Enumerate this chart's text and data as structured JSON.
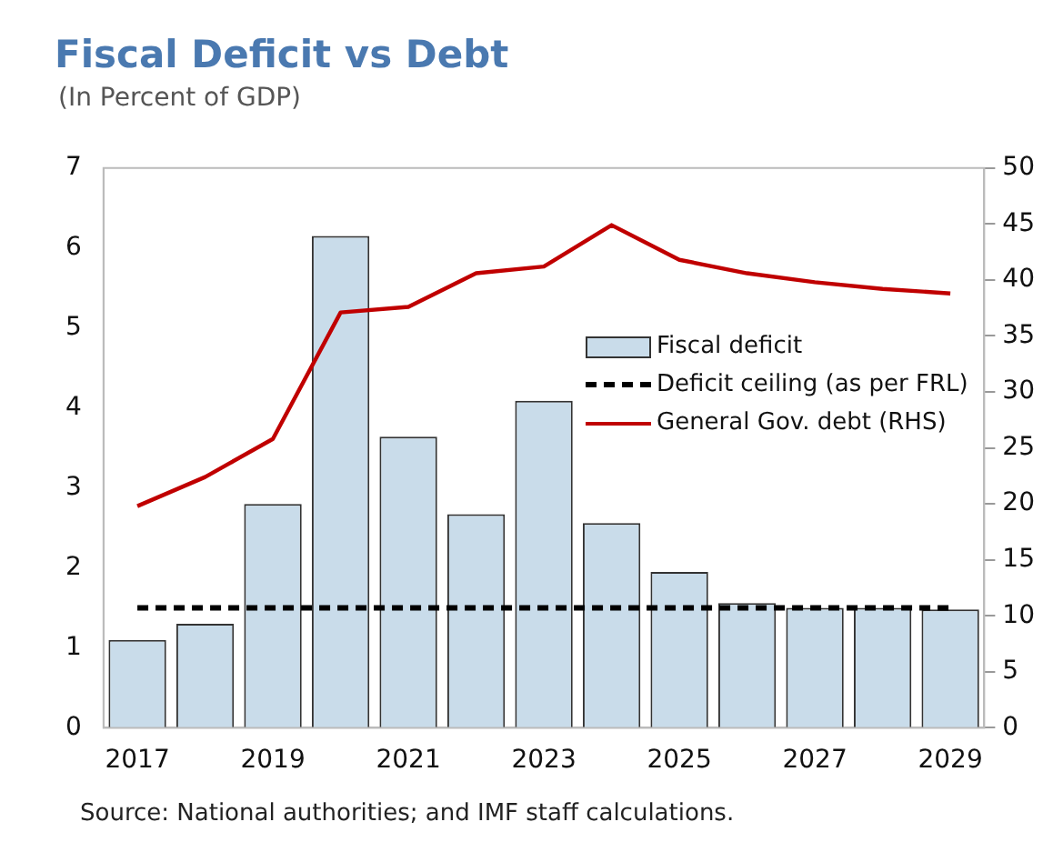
{
  "chart_data": {
    "type": "bar",
    "title": "Fiscal Deficit vs Debt",
    "subtitle": "(In Percent of GDP)",
    "categories": [
      "2017",
      null,
      "2019",
      null,
      "2021",
      null,
      "2023",
      null,
      "2025",
      null,
      "2027",
      null,
      "2029"
    ],
    "series": [
      {
        "name": "Fiscal deficit",
        "color": "#c9dcea",
        "values": [
          1.1,
          1.3,
          2.8,
          6.15,
          3.64,
          2.67,
          4.09,
          2.56,
          1.95,
          1.56,
          1.5,
          1.5,
          1.48
        ]
      },
      {
        "name": "Deficit ceiling (as per FRL)",
        "type": "line",
        "color": "#000000",
        "line_style": "dashed",
        "values": [
          1.5,
          1.5,
          1.5,
          1.5,
          1.5,
          1.5,
          1.5,
          1.5,
          1.5,
          1.5,
          1.5,
          1.5,
          1.5
        ]
      },
      {
        "name": "General Gov. debt (RHS)",
        "type": "line",
        "color": "#c00000",
        "axis": "y2",
        "values": [
          19.8,
          22.4,
          25.8,
          37.1,
          37.6,
          40.6,
          41.2,
          44.9,
          41.8,
          40.6,
          39.8,
          39.2,
          38.8
        ]
      }
    ],
    "ylim": [
      0,
      7
    ],
    "yticks": [
      0,
      1,
      2,
      3,
      4,
      5,
      6,
      7
    ],
    "y2lim": [
      0,
      50
    ],
    "y2ticks": [
      0,
      5,
      10,
      15,
      20,
      25,
      30,
      35,
      40,
      45,
      50
    ],
    "grid": false,
    "legend": "right",
    "marker": "none",
    "annotations": [
      "Source: National authorities; and IMF staff calculations."
    ]
  }
}
